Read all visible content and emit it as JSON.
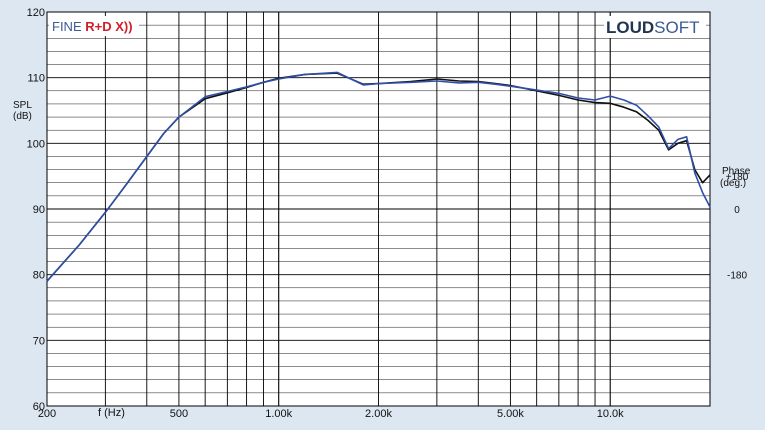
{
  "brand": {
    "left_prefix": "FINE ",
    "left_accent": "R+D X))",
    "right_bold": "LOUD",
    "right_light": "SOFT"
  },
  "axes": {
    "ylabel_line1": "SPL",
    "ylabel_line2": "(dB)",
    "xlabel": "f (Hz)",
    "phase_label_line1": "Phase",
    "phase_label_line2": "(deg.)"
  },
  "colors": {
    "background": "#dde7f1",
    "plot_background": "#ffffff",
    "grid": "#000000",
    "series_black": "#111111",
    "series_blue": "#2f4fa8",
    "brand_blue": "#3a5c93",
    "brand_red": "#d0202a",
    "brand_dark": "#1f3550"
  },
  "chart_data": {
    "type": "line",
    "xscale": "log",
    "xlim": [
      200,
      20000
    ],
    "ylim": [
      60,
      120
    ],
    "x_tick_labels": [
      {
        "x": 200,
        "label": "200"
      },
      {
        "x": 500,
        "label": "500"
      },
      {
        "x": 1000,
        "label": "1.00k"
      },
      {
        "x": 2000,
        "label": "2.00k"
      },
      {
        "x": 5000,
        "label": "5.00k"
      },
      {
        "x": 10000,
        "label": "10.0k"
      }
    ],
    "y_ticks": [
      60,
      70,
      80,
      90,
      100,
      110,
      120
    ],
    "phase_ticks": [
      {
        "spl": 95,
        "label": "+180"
      },
      {
        "spl": 90,
        "label": "0"
      },
      {
        "spl": 80,
        "label": "-180"
      }
    ],
    "grid": true,
    "series": [
      {
        "color": "#111111",
        "x": [
          200,
          250,
          300,
          350,
          400,
          450,
          500,
          600,
          700,
          800,
          900,
          1000,
          1200,
          1500,
          1800,
          2000,
          2500,
          3000,
          3500,
          4000,
          4500,
          5000,
          6000,
          7000,
          8000,
          9000,
          10000,
          11000,
          12000,
          13000,
          14000,
          15000,
          16000,
          17000,
          18000,
          19000,
          20000
        ],
        "y": [
          79,
          84.5,
          89.5,
          94,
          98,
          101.5,
          104,
          106.8,
          107.7,
          108.5,
          109.3,
          109.9,
          110.5,
          110.7,
          109.0,
          109.1,
          109.4,
          109.8,
          109.5,
          109.4,
          109.1,
          108.8,
          108.0,
          107.3,
          106.6,
          106.2,
          106.1,
          105.5,
          104.8,
          103.5,
          102.0,
          99.0,
          100.0,
          100.4,
          96.0,
          94.0,
          95.2
        ]
      },
      {
        "color": "#2f4fa8",
        "x": [
          200,
          250,
          300,
          350,
          400,
          450,
          500,
          600,
          700,
          800,
          900,
          1000,
          1200,
          1500,
          1800,
          2000,
          2500,
          3000,
          3500,
          4000,
          4500,
          5000,
          6000,
          7000,
          8000,
          9000,
          10000,
          11000,
          12000,
          13000,
          14000,
          15000,
          16000,
          17000,
          18000,
          19000,
          20000
        ],
        "y": [
          79,
          84.5,
          89.5,
          94,
          98,
          101.5,
          104,
          107.1,
          107.9,
          108.6,
          109.3,
          109.8,
          110.5,
          110.8,
          108.9,
          109.1,
          109.3,
          109.5,
          109.2,
          109.3,
          109.0,
          108.7,
          108.1,
          107.6,
          106.9,
          106.6,
          107.2,
          106.6,
          105.8,
          104.2,
          102.5,
          99.2,
          100.6,
          101.0,
          95.5,
          92.5,
          90.3
        ]
      }
    ]
  }
}
